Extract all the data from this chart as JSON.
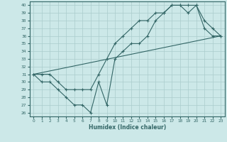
{
  "xlabel": "Humidex (Indice chaleur)",
  "ylabel": "",
  "bg_color": "#cce8e8",
  "grid_color": "#aacccc",
  "line_color": "#336666",
  "xlim": [
    -0.5,
    23.5
  ],
  "ylim": [
    25.5,
    40.5
  ],
  "xticks": [
    0,
    1,
    2,
    3,
    4,
    5,
    6,
    7,
    8,
    9,
    10,
    11,
    12,
    13,
    14,
    15,
    16,
    17,
    18,
    19,
    20,
    21,
    22,
    23
  ],
  "yticks": [
    26,
    27,
    28,
    29,
    30,
    31,
    32,
    33,
    34,
    35,
    36,
    37,
    38,
    39,
    40
  ],
  "line1_x": [
    0,
    1,
    2,
    3,
    4,
    5,
    6,
    7,
    8,
    9,
    10,
    11,
    12,
    13,
    14,
    15,
    16,
    17,
    18,
    19,
    20,
    21,
    22,
    23
  ],
  "line1_y": [
    31,
    30,
    30,
    29,
    28,
    27,
    27,
    26,
    30,
    27,
    33,
    34,
    35,
    35,
    36,
    38,
    39,
    40,
    40,
    39,
    40,
    37,
    36,
    36
  ],
  "line2_x": [
    0,
    1,
    2,
    3,
    4,
    5,
    6,
    7,
    8,
    9,
    10,
    11,
    12,
    13,
    14,
    15,
    16,
    17,
    18,
    19,
    20,
    21,
    22,
    23
  ],
  "line2_y": [
    31,
    31,
    31,
    30,
    29,
    29,
    29,
    29,
    31,
    33,
    35,
    36,
    37,
    38,
    38,
    39,
    39,
    40,
    40,
    40,
    40,
    38,
    37,
    36
  ],
  "line3_x": [
    0,
    23
  ],
  "line3_y": [
    31,
    36
  ]
}
